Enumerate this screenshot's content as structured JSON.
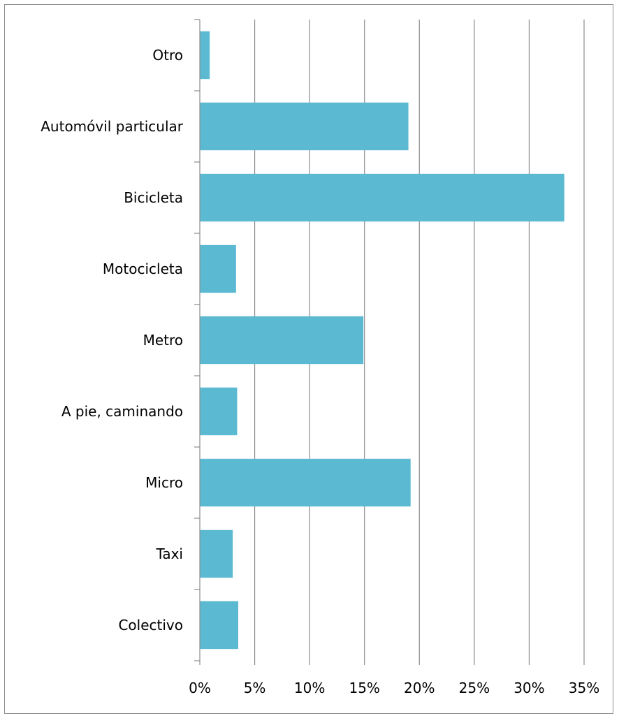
{
  "chart_data": {
    "type": "bar",
    "orientation": "horizontal",
    "categories": [
      "Colectivo",
      "Taxi",
      "Micro",
      "A pie, caminando",
      "Metro",
      "Motocicleta",
      "Bicicleta",
      "Automóvil particular",
      "Otro"
    ],
    "values": [
      3.5,
      3.0,
      19.2,
      3.4,
      14.9,
      3.3,
      33.2,
      19.0,
      0.9
    ],
    "value_unit": "%",
    "xlim": [
      0,
      35
    ],
    "xticks": [
      "0%",
      "5%",
      "10%",
      "15%",
      "20%",
      "25%",
      "30%",
      "35%"
    ],
    "grid": "vertical",
    "legend": "none",
    "title": "",
    "xlabel": "",
    "ylabel": "",
    "bar_color": "#5bb9d2",
    "grid_color": "#8c8c8c"
  }
}
